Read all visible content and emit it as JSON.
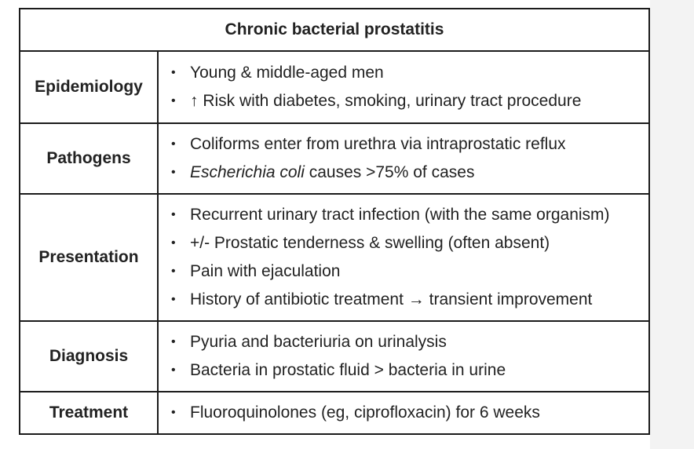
{
  "table": {
    "title": "Chronic bacterial prostatitis",
    "bullet_glyph": "•",
    "rows": [
      {
        "label": "Epidemiology",
        "items": [
          {
            "text": "Young & middle-aged men"
          },
          {
            "text": "↑ Risk with diabetes, smoking, urinary tract procedure"
          }
        ]
      },
      {
        "label": "Pathogens",
        "items": [
          {
            "text": "Coliforms enter from urethra via intraprostatic reflux"
          },
          {
            "italic": "Escherichia coli",
            "text": " causes >75% of cases"
          }
        ]
      },
      {
        "label": "Presentation",
        "items": [
          {
            "text": "Recurrent urinary tract infection (with the same organism)"
          },
          {
            "text": "+/- Prostatic tenderness & swelling (often absent)"
          },
          {
            "text": "Pain with ejaculation"
          },
          {
            "text": "History of antibiotic treatment → transient improvement"
          }
        ]
      },
      {
        "label": "Diagnosis",
        "items": [
          {
            "text": "Pyuria and bacteriuria on urinalysis"
          },
          {
            "text": "Bacteria in prostatic fluid > bacteria in urine"
          }
        ]
      },
      {
        "label": "Treatment",
        "items": [
          {
            "text": "Fluoroquinolones (eg, ciprofloxacin) for 6 weeks"
          }
        ]
      }
    ]
  }
}
